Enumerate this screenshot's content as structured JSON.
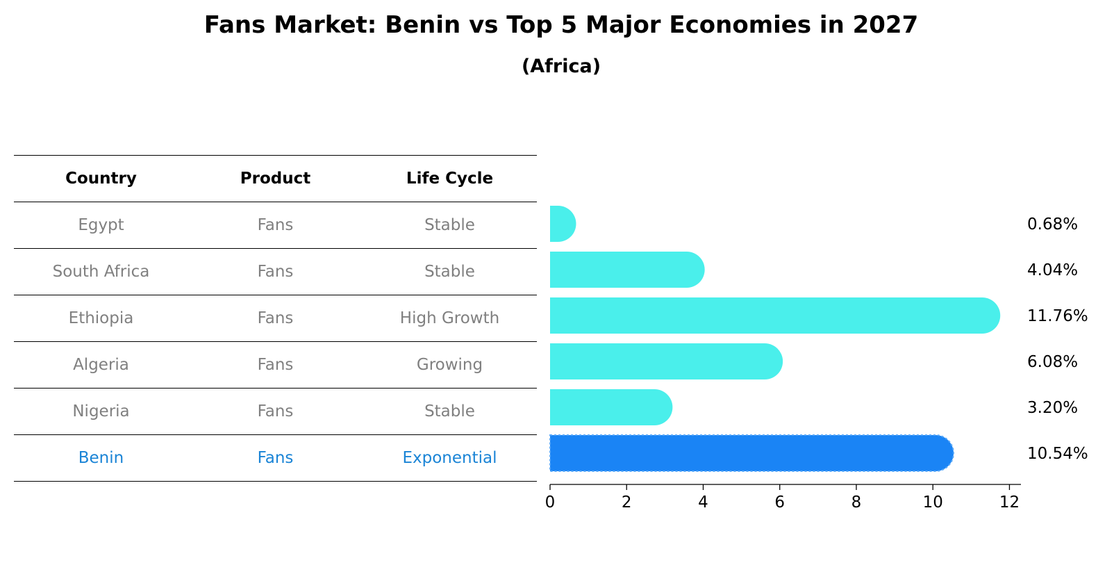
{
  "title": "Fans Market: Benin vs Top 5 Major Economies in 2027",
  "subtitle": "(Africa)",
  "table": {
    "headers": [
      "Country",
      "Product",
      "Life Cycle"
    ],
    "rows": [
      {
        "country": "Egypt",
        "product": "Fans",
        "life_cycle": "Stable"
      },
      {
        "country": "South Africa",
        "product": "Fans",
        "life_cycle": "Stable"
      },
      {
        "country": "Ethiopia",
        "product": "Fans",
        "life_cycle": "High Growth"
      },
      {
        "country": "Algeria",
        "product": "Fans",
        "life_cycle": "Growing"
      },
      {
        "country": "Nigeria",
        "product": "Fans",
        "life_cycle": "Stable"
      },
      {
        "country": "Benin",
        "product": "Fans",
        "life_cycle": "Exponential",
        "highlight": true
      }
    ]
  },
  "chart_data": {
    "type": "bar",
    "orientation": "horizontal",
    "categories": [
      "Egypt",
      "South Africa",
      "Ethiopia",
      "Algeria",
      "Nigeria",
      "Benin"
    ],
    "values": [
      0.68,
      4.04,
      11.76,
      6.08,
      3.2,
      10.54
    ],
    "value_labels": [
      "0.68%",
      "4.04%",
      "11.76%",
      "6.08%",
      "3.20%",
      "10.54%"
    ],
    "highlight_index": 5,
    "xlim": [
      0,
      12.3
    ],
    "xticks": [
      0,
      2,
      4,
      6,
      8,
      10,
      12
    ],
    "grid": false,
    "colors": {
      "default": "#4aefeb",
      "highlight": "#1a84f5"
    }
  }
}
